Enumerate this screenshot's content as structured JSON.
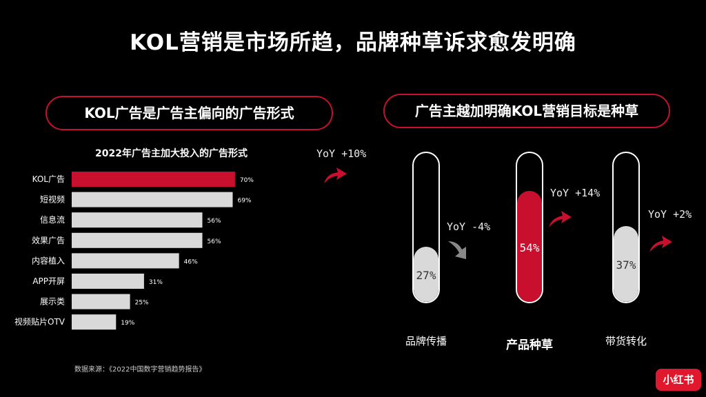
{
  "title": "KOL营销是市场所趋，品牌种草诉求愈发明确",
  "left_pill": "KOL广告是广告主偏向的广告形式",
  "right_pill": "广告主越加明确KOL营销目标是种草",
  "source": "数据来源：《2022中国数字营销趋势报告》",
  "logo_text": "小红书",
  "left_yoy": "YoY +10%",
  "colors": {
    "accent": "#c8102e",
    "bar_gray": "#d9d9d9",
    "therm_gray": "#d9d9d9"
  },
  "chart_data": [
    {
      "type": "bar",
      "orientation": "horizontal",
      "title": "2022年广告主加大投入的广告形式",
      "categories": [
        "KOL广告",
        "短视频",
        "信息流",
        "效果广告",
        "内容植入",
        "APP开屏",
        "展示类",
        "视频贴片OTV"
      ],
      "values": [
        70,
        69,
        56,
        56,
        46,
        31,
        25,
        19
      ],
      "value_labels": [
        "70%",
        "69%",
        "56%",
        "56%",
        "46%",
        "31%",
        "25%",
        "19%"
      ],
      "highlight": "KOL广告",
      "xlim": [
        0,
        100
      ],
      "grid": false
    },
    {
      "type": "bar",
      "style": "thermometer",
      "categories": [
        "品牌传播",
        "产品种草",
        "带货转化"
      ],
      "values": [
        27,
        54,
        37
      ],
      "value_labels": [
        "27%",
        "54%",
        "37%"
      ],
      "yoy": [
        "YoY -4%",
        "YoY +14%",
        "YoY +2%"
      ],
      "yoy_direction": [
        "down",
        "up",
        "up"
      ],
      "highlight": "产品种草",
      "ylim": [
        0,
        100
      ]
    }
  ]
}
